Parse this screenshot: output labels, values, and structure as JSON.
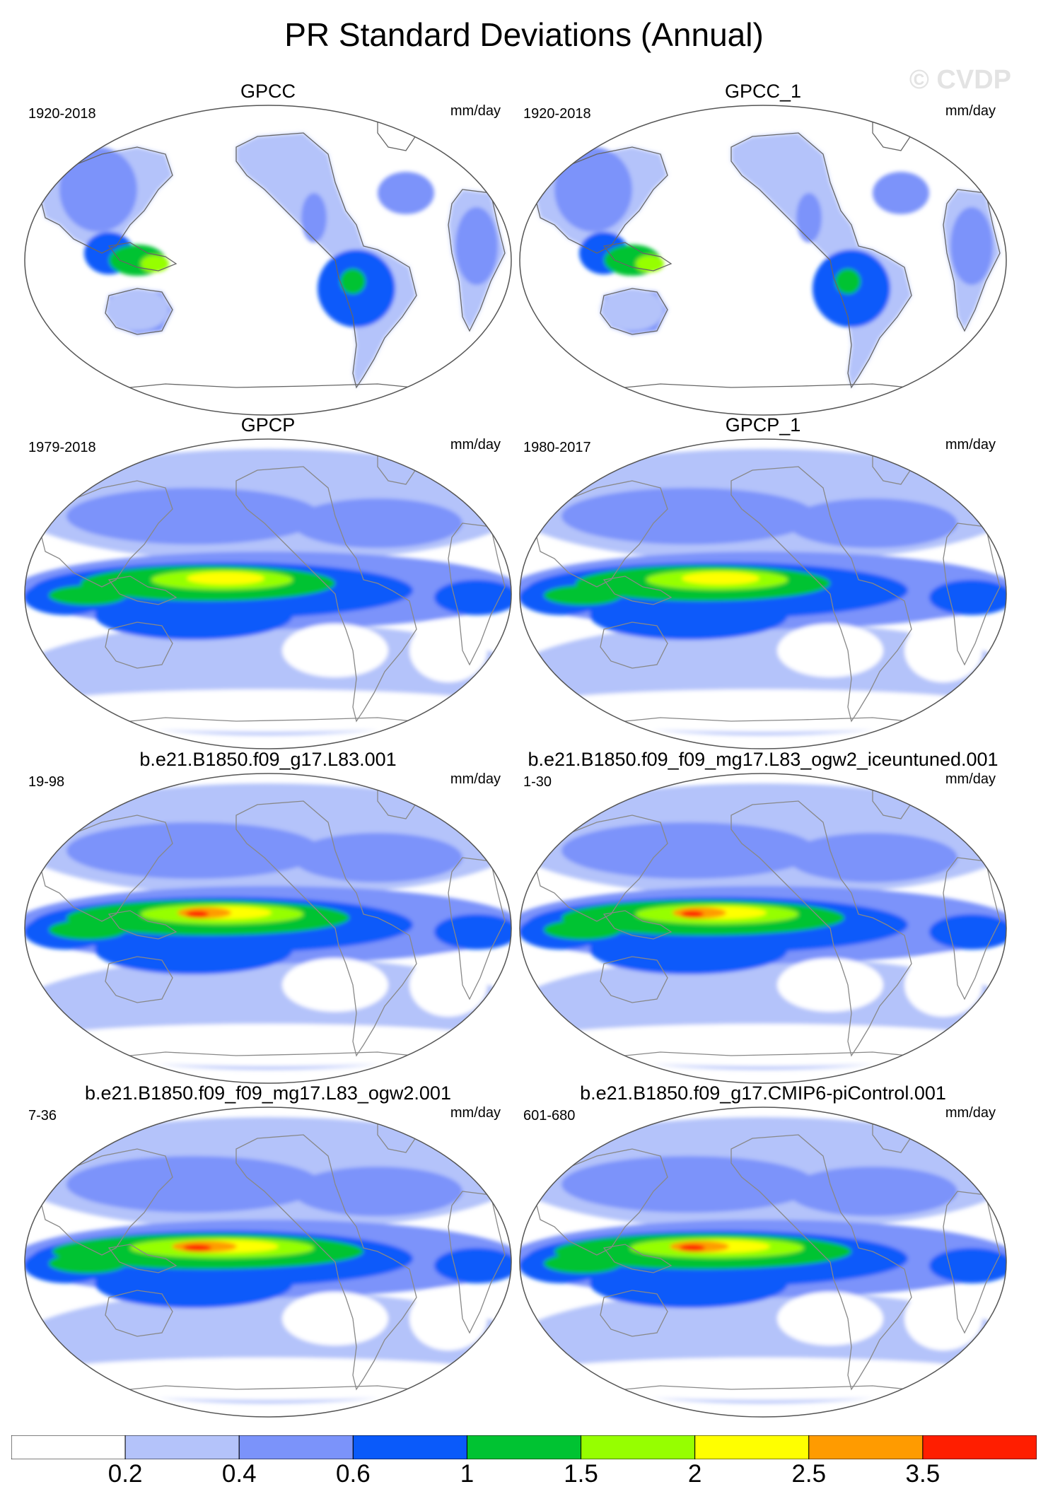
{
  "figure": {
    "title": "PR Standard Deviations (Annual)",
    "watermark": "© CVDP"
  },
  "panels": [
    {
      "title": "GPCC",
      "period": "1920-2018",
      "units": "mm/day",
      "field": "obs_land"
    },
    {
      "title": "GPCC_1",
      "period": "1920-2018",
      "units": "mm/day",
      "field": "obs_land"
    },
    {
      "title": "GPCP",
      "period": "1979-2018",
      "units": "mm/day",
      "field": "obs_global"
    },
    {
      "title": "GPCP_1",
      "period": "1980-2017",
      "units": "mm/day",
      "field": "obs_global"
    },
    {
      "title": "b.e21.B1850.f09_g17.L83.001",
      "period": "19-98",
      "units": "mm/day",
      "field": "model_a"
    },
    {
      "title": "b.e21.B1850.f09_f09_mg17.L83_ogw2_iceuntuned.001",
      "period": "1-30",
      "units": "mm/day",
      "field": "model_b"
    },
    {
      "title": "b.e21.B1850.f09_f09_mg17.L83_ogw2.001",
      "period": "7-36",
      "units": "mm/day",
      "field": "model_c"
    },
    {
      "title": "b.e21.B1850.f09_g17.CMIP6-piControl.001",
      "period": "601-680",
      "units": "mm/day",
      "field": "model_d"
    }
  ],
  "colorbar": {
    "colors": [
      "#ffffff",
      "#b4c3fa",
      "#7b93fa",
      "#0a5afa",
      "#00c332",
      "#96ff00",
      "#ffff00",
      "#ff9b00",
      "#ff1e00"
    ],
    "labels": [
      "0.2",
      "0.4",
      "0.6",
      "1",
      "1.5",
      "2",
      "2.5",
      "3.5"
    ]
  }
}
